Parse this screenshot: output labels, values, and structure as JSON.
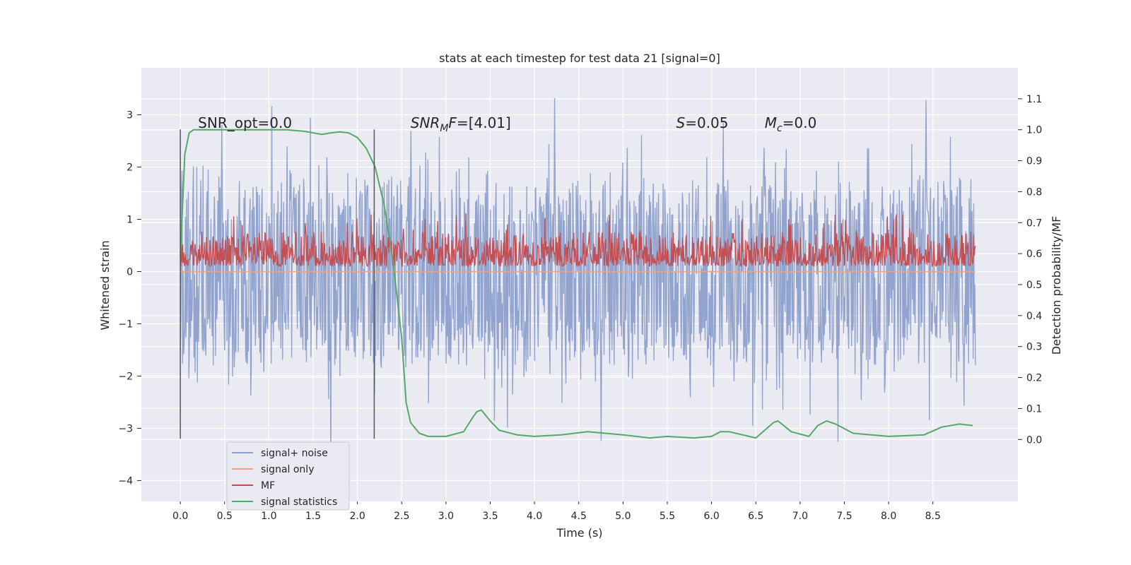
{
  "chart_data": {
    "type": "line",
    "title": "stats at each timestep for test data 21 [signal=0]",
    "xlabel": "Time (s)",
    "ylabel": "Whitened strain",
    "ylabel_right": "Detection probability/MF",
    "xlim": [
      -0.44,
      9.46
    ],
    "ylim": [
      -4.4,
      3.9
    ],
    "ylim_right": [
      -0.2,
      1.2
    ],
    "xticks": [
      0.0,
      0.5,
      1.0,
      1.5,
      2.0,
      2.5,
      3.0,
      3.5,
      4.0,
      4.5,
      5.0,
      5.5,
      6.0,
      6.5,
      7.0,
      7.5,
      8.0,
      8.5
    ],
    "xtick_labels": [
      "0.0",
      "0.5",
      "1.0",
      "1.5",
      "2.0",
      "2.5",
      "3.0",
      "3.5",
      "4.0",
      "4.5",
      "5.0",
      "5.5",
      "6.0",
      "6.5",
      "7.0",
      "7.5",
      "8.0",
      "8.5"
    ],
    "yticks": [
      3,
      2,
      1,
      0,
      -1,
      -2,
      -3,
      -4
    ],
    "ytick_labels": [
      "3",
      "2",
      "1",
      "0",
      "−1",
      "−2",
      "−3",
      "−4"
    ],
    "yticks_right": [
      1.1,
      1.0,
      0.9,
      0.8,
      0.7,
      0.6,
      0.5,
      0.4,
      0.3,
      0.2,
      0.1,
      0.0
    ],
    "ytick_labels_right": [
      "1.1",
      "1.0",
      "0.9",
      "0.8",
      "0.7",
      "0.6",
      "0.5",
      "0.4",
      "0.3",
      "0.2",
      "0.1",
      "0.0"
    ],
    "grid": true,
    "legend_position": "bottom-left",
    "series": [
      {
        "name": "signal+ noise",
        "color": "#8da0cb",
        "axis": "left",
        "style": "noise",
        "x_range": [
          0.0,
          8.98
        ],
        "center": 0.0,
        "typical_amplitude": 1.0,
        "max": 3.55,
        "min": -4.05
      },
      {
        "name": "signal only",
        "color": "#e8a58c",
        "axis": "left",
        "x": [
          0.0,
          8.98
        ],
        "y": [
          0.0,
          0.0
        ]
      },
      {
        "name": "MF",
        "color": "#c44e52",
        "axis": "right",
        "style": "noise",
        "x_range": [
          0.0,
          8.98
        ],
        "baseline": 0.56,
        "upper_band": 0.67,
        "max": 0.73,
        "min": 0.54
      },
      {
        "name": "signal statistics",
        "color": "#55a868",
        "axis": "right",
        "x": [
          0.0,
          0.05,
          0.1,
          0.15,
          0.2,
          0.3,
          0.5,
          0.8,
          1.0,
          1.2,
          1.4,
          1.5,
          1.6,
          1.7,
          1.8,
          1.9,
          2.0,
          2.1,
          2.2,
          2.3,
          2.4,
          2.5,
          2.55,
          2.6,
          2.7,
          2.8,
          3.0,
          3.2,
          3.3,
          3.35,
          3.4,
          3.5,
          3.6,
          3.8,
          4.0,
          4.3,
          4.6,
          4.8,
          5.0,
          5.3,
          5.5,
          5.8,
          6.0,
          6.1,
          6.2,
          6.5,
          6.7,
          6.75,
          6.9,
          7.1,
          7.2,
          7.3,
          7.4,
          7.6,
          8.0,
          8.4,
          8.6,
          8.8,
          8.95
        ],
        "y": [
          0.59,
          0.92,
          0.99,
          1.0,
          1.0,
          1.0,
          1.0,
          1.0,
          1.0,
          1.0,
          0.995,
          0.99,
          0.985,
          0.99,
          0.993,
          0.99,
          0.975,
          0.94,
          0.88,
          0.76,
          0.58,
          0.33,
          0.12,
          0.055,
          0.02,
          0.01,
          0.01,
          0.025,
          0.07,
          0.09,
          0.095,
          0.06,
          0.03,
          0.015,
          0.01,
          0.015,
          0.025,
          0.02,
          0.015,
          0.005,
          0.01,
          0.005,
          0.01,
          0.025,
          0.025,
          0.005,
          0.055,
          0.06,
          0.025,
          0.01,
          0.045,
          0.06,
          0.05,
          0.02,
          0.01,
          0.015,
          0.04,
          0.05,
          0.045
        ]
      }
    ],
    "vertical_lines": [
      {
        "x": 0.0,
        "y0": -3.2,
        "y1": 2.72,
        "color": "#555555"
      },
      {
        "x": 2.19,
        "y0": -3.2,
        "y1": 2.72,
        "color": "#555555"
      }
    ],
    "annotations": [
      {
        "id": "snr-opt",
        "x": 0.2,
        "y": 2.75,
        "text": "SNR_opt=0.0"
      },
      {
        "id": "snr-mf",
        "x": 2.6,
        "y": 2.75,
        "text": "SNR",
        "sub": "M",
        "suffix_italic": "F",
        "suffix": "=[4.01]"
      },
      {
        "id": "s-stat",
        "x": 5.6,
        "y": 2.75,
        "text": "S",
        "italic": true,
        "suffix": "=0.05"
      },
      {
        "id": "mc",
        "x": 6.6,
        "y": 2.75,
        "text": "M",
        "italic": true,
        "sub": "c",
        "suffix": "=0.0"
      }
    ]
  }
}
